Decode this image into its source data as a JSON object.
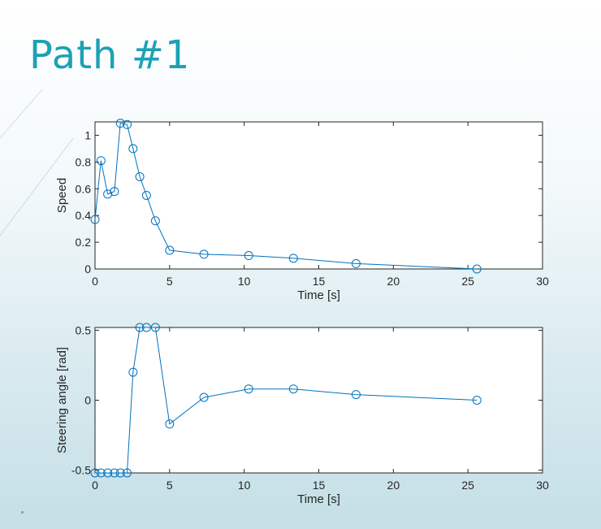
{
  "slide": {
    "title": "Path #1"
  },
  "chart_data": [
    {
      "type": "line",
      "xlabel": "Time [s]",
      "ylabel": "Speed",
      "xlim": [
        0,
        30
      ],
      "ylim": [
        0,
        1.1
      ],
      "xticks": [
        0,
        5,
        10,
        15,
        20,
        25,
        30
      ],
      "yticks": [
        0,
        0.2,
        0.4,
        0.6,
        0.8,
        1
      ],
      "ytick_labels": [
        "0",
        "0.2",
        "0.4",
        "0.6",
        "0.8",
        "1"
      ],
      "color": "#0072bd",
      "marker": "circle",
      "x": [
        0,
        0.4,
        0.85,
        1.3,
        1.7,
        2.15,
        2.55,
        3.0,
        3.45,
        4.05,
        5.0,
        7.3,
        10.3,
        13.3,
        17.5,
        25.6
      ],
      "y": [
        0.37,
        0.81,
        0.56,
        0.58,
        1.09,
        1.08,
        0.9,
        0.69,
        0.55,
        0.36,
        0.14,
        0.11,
        0.1,
        0.08,
        0.04,
        0.0
      ]
    },
    {
      "type": "line",
      "xlabel": "Time [s]",
      "ylabel": "Steering angle [rad]",
      "xlim": [
        0,
        30
      ],
      "ylim": [
        -0.52,
        0.52
      ],
      "xticks": [
        0,
        5,
        10,
        15,
        20,
        25,
        30
      ],
      "yticks": [
        -0.5,
        0,
        0.5
      ],
      "ytick_labels": [
        "-0.5",
        "0",
        "0.5"
      ],
      "color": "#0072bd",
      "marker": "circle",
      "x": [
        0,
        0.4,
        0.85,
        1.3,
        1.7,
        2.15,
        2.55,
        3.0,
        3.45,
        4.05,
        5.0,
        7.3,
        10.3,
        13.3,
        17.5,
        25.6
      ],
      "y": [
        -0.52,
        -0.52,
        -0.52,
        -0.52,
        -0.52,
        -0.52,
        0.2,
        0.52,
        0.52,
        0.52,
        -0.17,
        0.02,
        0.08,
        0.08,
        0.04,
        0.0
      ]
    }
  ]
}
